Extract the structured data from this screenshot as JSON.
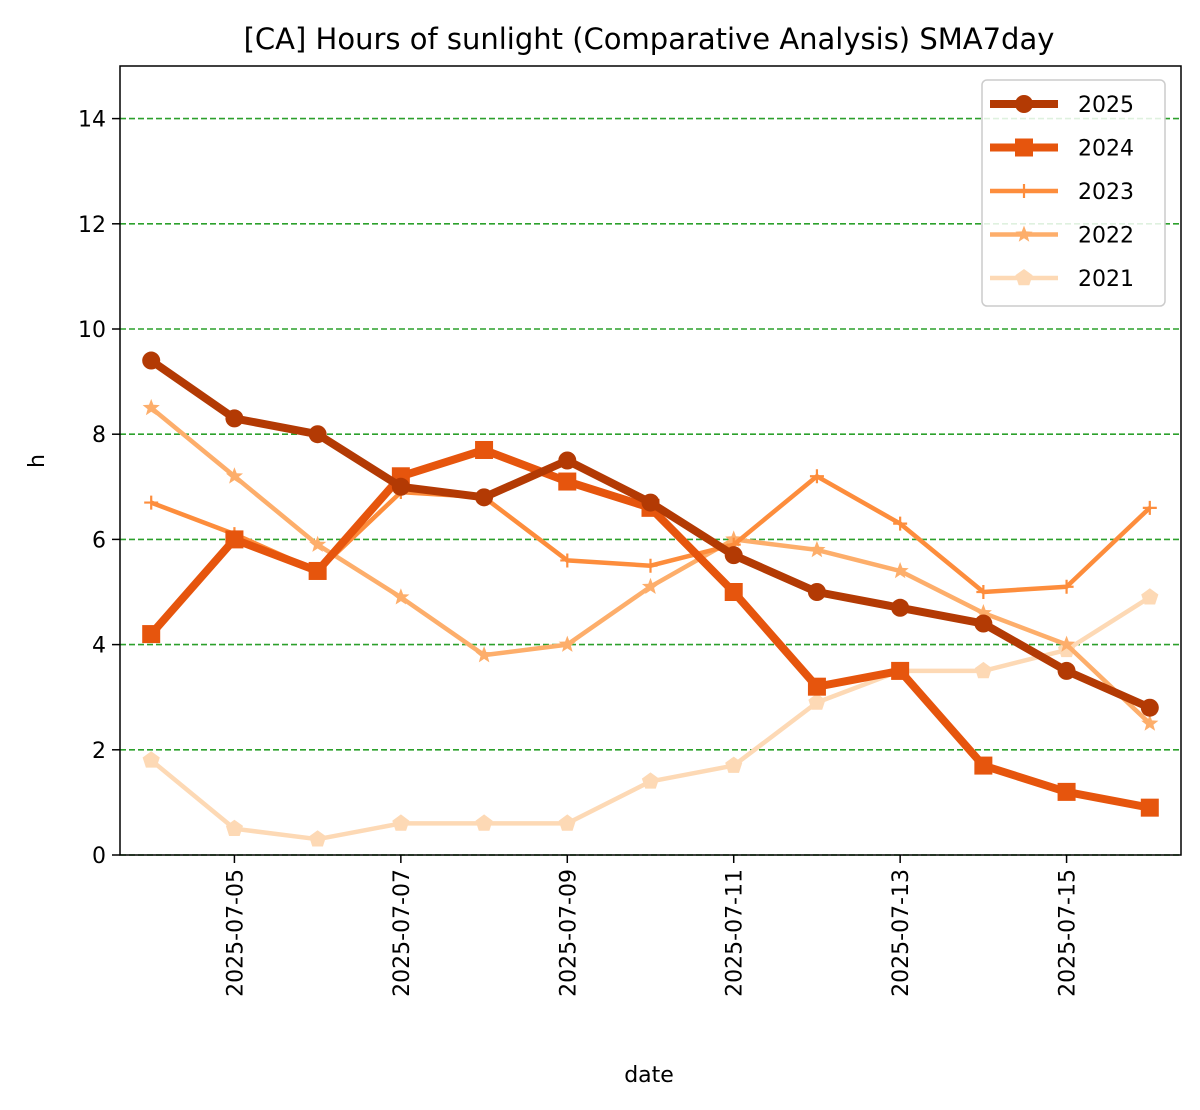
{
  "chart_data": {
    "type": "line",
    "title": "[CA] Hours of sunlight (Comparative Analysis) SMA7day",
    "xlabel": "date",
    "ylabel": "h",
    "ylim": [
      0,
      15
    ],
    "yticks": [
      0,
      2,
      4,
      6,
      8,
      10,
      12,
      14
    ],
    "xlim": [
      "2025-07-03T15:00",
      "2025-07-16T09:00"
    ],
    "x": [
      "2025-07-04",
      "2025-07-05",
      "2025-07-06",
      "2025-07-07",
      "2025-07-08",
      "2025-07-09",
      "2025-07-10",
      "2025-07-11",
      "2025-07-12",
      "2025-07-13",
      "2025-07-14",
      "2025-07-15",
      "2025-07-16"
    ],
    "xticks": [
      "2025-07-05",
      "2025-07-07",
      "2025-07-09",
      "2025-07-11",
      "2025-07-13",
      "2025-07-15"
    ],
    "grid": "horizontal dashed",
    "grid_color": "#2ca02c",
    "legend_position": "top-right",
    "series": [
      {
        "name": "2025",
        "color": "#b33a04",
        "marker": "circle",
        "width": "thick",
        "values": [
          9.4,
          8.3,
          8.0,
          7.0,
          6.8,
          7.5,
          6.7,
          5.7,
          5.0,
          4.7,
          4.4,
          3.5,
          2.8
        ]
      },
      {
        "name": "2024",
        "color": "#e6550d",
        "marker": "square",
        "width": "thick",
        "values": [
          4.2,
          6.0,
          5.4,
          7.2,
          7.7,
          7.1,
          6.6,
          5.0,
          3.2,
          3.5,
          1.7,
          1.2,
          0.9
        ]
      },
      {
        "name": "2023",
        "color": "#fd8d3c",
        "marker": "plus",
        "width": "medium",
        "values": [
          6.7,
          6.1,
          5.4,
          6.9,
          6.8,
          5.6,
          5.5,
          5.9,
          7.2,
          6.3,
          5.0,
          5.1,
          6.6
        ]
      },
      {
        "name": "2022",
        "color": "#fdae6b",
        "marker": "star",
        "width": "medium",
        "values": [
          8.5,
          7.2,
          5.9,
          4.9,
          3.8,
          4.0,
          5.1,
          6.0,
          5.8,
          5.4,
          4.6,
          4.0,
          2.5
        ]
      },
      {
        "name": "2021",
        "color": "#fdd9b5",
        "marker": "pentagon",
        "width": "medium",
        "values": [
          1.8,
          0.5,
          0.3,
          0.6,
          0.6,
          0.6,
          1.4,
          1.7,
          2.9,
          3.5,
          3.5,
          3.9,
          4.9
        ]
      }
    ]
  }
}
